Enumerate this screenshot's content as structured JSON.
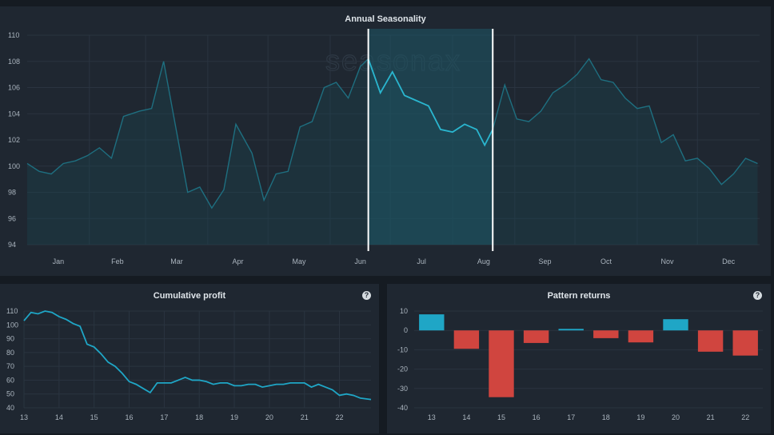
{
  "seasonality": {
    "title": "Annual Seasonality",
    "watermark": "seasonax",
    "colors": {
      "line": "#1e6f80",
      "highlight_line": "#2ab6cf",
      "fill": "#1a4752",
      "selection_border": "#ffffff",
      "grid": "#2a3440"
    }
  },
  "cumulative": {
    "title": "Cumulative profit",
    "help": "?"
  },
  "pattern": {
    "title": "Pattern returns",
    "help": "?"
  },
  "chart_data": [
    {
      "type": "line",
      "title": "Annual Seasonality",
      "ylim": [
        94,
        110
      ],
      "yticks": [
        94,
        96,
        98,
        100,
        102,
        104,
        106,
        108,
        110
      ],
      "months": [
        "Jan",
        "Feb",
        "Mar",
        "Apr",
        "May",
        "Jun",
        "Jul",
        "Aug",
        "Sep",
        "Oct",
        "Nov",
        "Dec"
      ],
      "grid": true,
      "selection": {
        "start_day": 170,
        "end_day": 232
      },
      "x_day": [
        0,
        6,
        12,
        18,
        24,
        30,
        36,
        42,
        48,
        56,
        62,
        68,
        74,
        80,
        86,
        92,
        98,
        104,
        112,
        118,
        124,
        130,
        136,
        142,
        148,
        154,
        160,
        166,
        170,
        176,
        182,
        188,
        194,
        200,
        206,
        212,
        218,
        224,
        228,
        232,
        238,
        244,
        250,
        256,
        262,
        268,
        274,
        280,
        286,
        292,
        298,
        304,
        310,
        316,
        322,
        328,
        334,
        340,
        346,
        352,
        358,
        364
      ],
      "y": [
        100.2,
        99.6,
        99.4,
        100.2,
        100.4,
        100.8,
        101.4,
        100.6,
        103.8,
        104.2,
        104.4,
        108.0,
        103.0,
        98.0,
        98.4,
        96.8,
        98.2,
        103.2,
        101.0,
        97.4,
        99.4,
        99.6,
        103.0,
        103.4,
        106.0,
        106.4,
        105.2,
        107.6,
        108.2,
        105.6,
        107.2,
        105.4,
        105.0,
        104.6,
        102.8,
        102.6,
        103.2,
        102.8,
        101.6,
        102.8,
        106.2,
        103.6,
        103.4,
        104.2,
        105.6,
        106.2,
        107.0,
        108.2,
        106.6,
        106.4,
        105.2,
        104.4,
        104.6,
        101.8,
        102.4,
        100.4,
        100.6,
        99.8,
        98.6,
        99.4,
        100.6,
        100.2
      ]
    },
    {
      "type": "line",
      "title": "Cumulative profit",
      "ylim": [
        40,
        110
      ],
      "yticks": [
        40,
        50,
        60,
        70,
        80,
        90,
        100,
        110
      ],
      "xticks": [
        13,
        14,
        15,
        16,
        17,
        18,
        19,
        20,
        21,
        22
      ],
      "grid": true,
      "x": [
        13.0,
        13.2,
        13.4,
        13.6,
        13.8,
        14.0,
        14.2,
        14.4,
        14.6,
        14.8,
        15.0,
        15.2,
        15.4,
        15.6,
        15.8,
        16.0,
        16.2,
        16.4,
        16.6,
        16.8,
        17.0,
        17.2,
        17.4,
        17.6,
        17.8,
        18.0,
        18.2,
        18.4,
        18.6,
        18.8,
        19.0,
        19.2,
        19.4,
        19.6,
        19.8,
        20.0,
        20.2,
        20.4,
        20.6,
        20.8,
        21.0,
        21.2,
        21.4,
        21.6,
        21.8,
        22.0,
        22.2,
        22.4,
        22.6,
        22.9
      ],
      "y": [
        103,
        109,
        108,
        110,
        109,
        106,
        104,
        101,
        99,
        86,
        84,
        79,
        73,
        70,
        65,
        59,
        57,
        54,
        51,
        58,
        58,
        58,
        60,
        62,
        60,
        60,
        59,
        57,
        58,
        58,
        56,
        56,
        57,
        57,
        55,
        56,
        57,
        57,
        58,
        58,
        58,
        55,
        57,
        55,
        53,
        49,
        50,
        49,
        47,
        46
      ]
    },
    {
      "type": "bar",
      "title": "Pattern returns",
      "ylim": [
        -40,
        10
      ],
      "yticks": [
        10,
        0,
        -10,
        -20,
        -30,
        -40
      ],
      "categories": [
        "13",
        "14",
        "15",
        "16",
        "17",
        "18",
        "19",
        "20",
        "21",
        "22"
      ],
      "values": [
        8.3,
        -9.5,
        -34.5,
        -6.5,
        0.8,
        -4.0,
        -6.2,
        5.8,
        -11.0,
        -13.0
      ],
      "colors": {
        "positive": "#1fa6c6",
        "negative": "#d0453f"
      },
      "grid": true
    }
  ]
}
